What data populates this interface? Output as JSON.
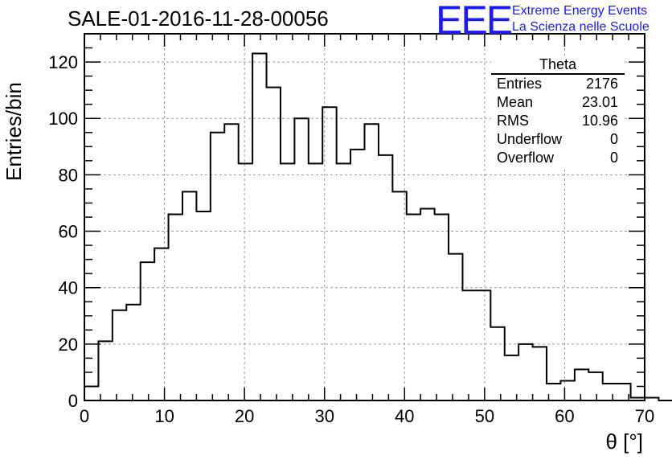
{
  "title": "SALE-01-2016-11-28-00056",
  "logo": {
    "mark": "EEE",
    "line1": "Extreme Energy Events",
    "line2": "La Scienza nelle Scuole",
    "color": "#1a1aff"
  },
  "stats_box": {
    "title": "Theta",
    "rows": [
      {
        "label": "Entries",
        "value": "2176"
      },
      {
        "label": "Mean",
        "value": "23.01"
      },
      {
        "label": "RMS",
        "value": "10.96"
      },
      {
        "label": "Underflow",
        "value": "0"
      },
      {
        "label": "Overflow",
        "value": "0"
      }
    ]
  },
  "chart_data": {
    "type": "bar",
    "subtype": "histogram-step",
    "title": "SALE-01-2016-11-28-00056",
    "xlabel": "θ [°]",
    "ylabel": "Entries/bin",
    "xlim": [
      0,
      70
    ],
    "ylim": [
      0,
      130
    ],
    "bin_width": 1.75,
    "bin_start": 0,
    "values": [
      5,
      21,
      32,
      34,
      49,
      54,
      66,
      74,
      67,
      95,
      98,
      84,
      123,
      111,
      84,
      100,
      84,
      104,
      84,
      89,
      98,
      87,
      74,
      66,
      68,
      66,
      52,
      39,
      39,
      26,
      16,
      20,
      19,
      6,
      7,
      11,
      10,
      6,
      6,
      1,
      1,
      0
    ],
    "x_ticks": [
      0,
      10,
      20,
      30,
      40,
      50,
      60,
      70
    ],
    "y_ticks": [
      0,
      20,
      40,
      60,
      80,
      100,
      120
    ],
    "grid": true,
    "line_color": "#000000"
  }
}
